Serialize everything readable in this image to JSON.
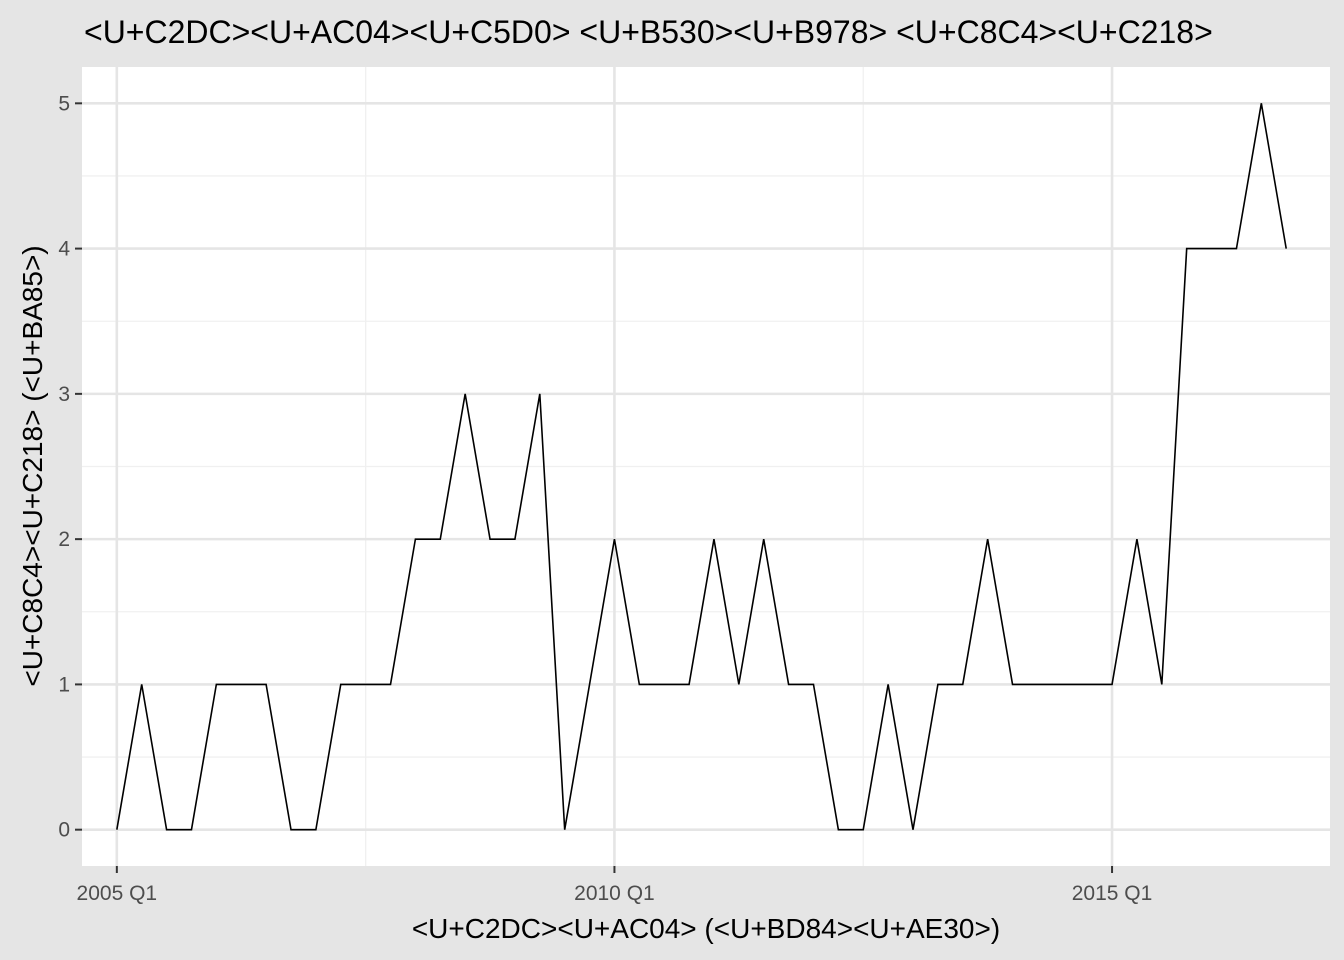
{
  "chart_data": {
    "type": "line",
    "title": "<U+C2DC><U+AC04><U+C5D0> <U+B530><U+B978> <U+C8C4><U+C218>",
    "xlabel": "<U+C2DC><U+AC04> (<U+BD84><U+AE30>)",
    "ylabel": "<U+C8C4><U+C218> (<U+BA85>)",
    "x_tick_labels": [
      "2005 Q1",
      "2010 Q1",
      "2015 Q1"
    ],
    "y_tick_labels": [
      "0",
      "1",
      "2",
      "3",
      "4",
      "5"
    ],
    "ylim": [
      -0.25,
      5.25
    ],
    "xlim": [
      "2004 Q3",
      "2017 Q2"
    ],
    "grid": true,
    "series": [
      {
        "x": [
          "2005 Q1",
          "2005 Q2",
          "2005 Q3",
          "2005 Q4",
          "2006 Q1",
          "2006 Q2",
          "2006 Q3",
          "2006 Q4",
          "2007 Q1",
          "2007 Q2",
          "2007 Q3",
          "2007 Q4",
          "2008 Q1",
          "2008 Q2",
          "2008 Q3",
          "2008 Q4",
          "2009 Q1",
          "2009 Q2",
          "2009 Q3",
          "2009 Q4",
          "2010 Q1",
          "2010 Q2",
          "2010 Q3",
          "2010 Q4",
          "2011 Q1",
          "2011 Q2",
          "2011 Q3",
          "2011 Q4",
          "2012 Q1",
          "2012 Q2",
          "2012 Q3",
          "2012 Q4",
          "2013 Q1",
          "2013 Q2",
          "2013 Q3",
          "2013 Q4",
          "2014 Q1",
          "2014 Q2",
          "2014 Q3",
          "2014 Q4",
          "2015 Q1",
          "2015 Q2",
          "2015 Q3",
          "2015 Q4",
          "2016 Q1",
          "2016 Q2",
          "2016 Q3",
          "2016 Q4"
        ],
        "values": [
          0,
          1,
          0,
          0,
          1,
          1,
          1,
          0,
          0,
          1,
          1,
          1,
          2,
          2,
          3,
          2,
          2,
          3,
          0,
          1,
          2,
          1,
          1,
          1,
          2,
          1,
          2,
          1,
          1,
          0,
          0,
          1,
          0,
          1,
          1,
          2,
          1,
          1,
          1,
          1,
          1,
          2,
          1,
          4,
          4,
          4,
          5,
          4
        ],
        "color": "#000000"
      }
    ]
  }
}
